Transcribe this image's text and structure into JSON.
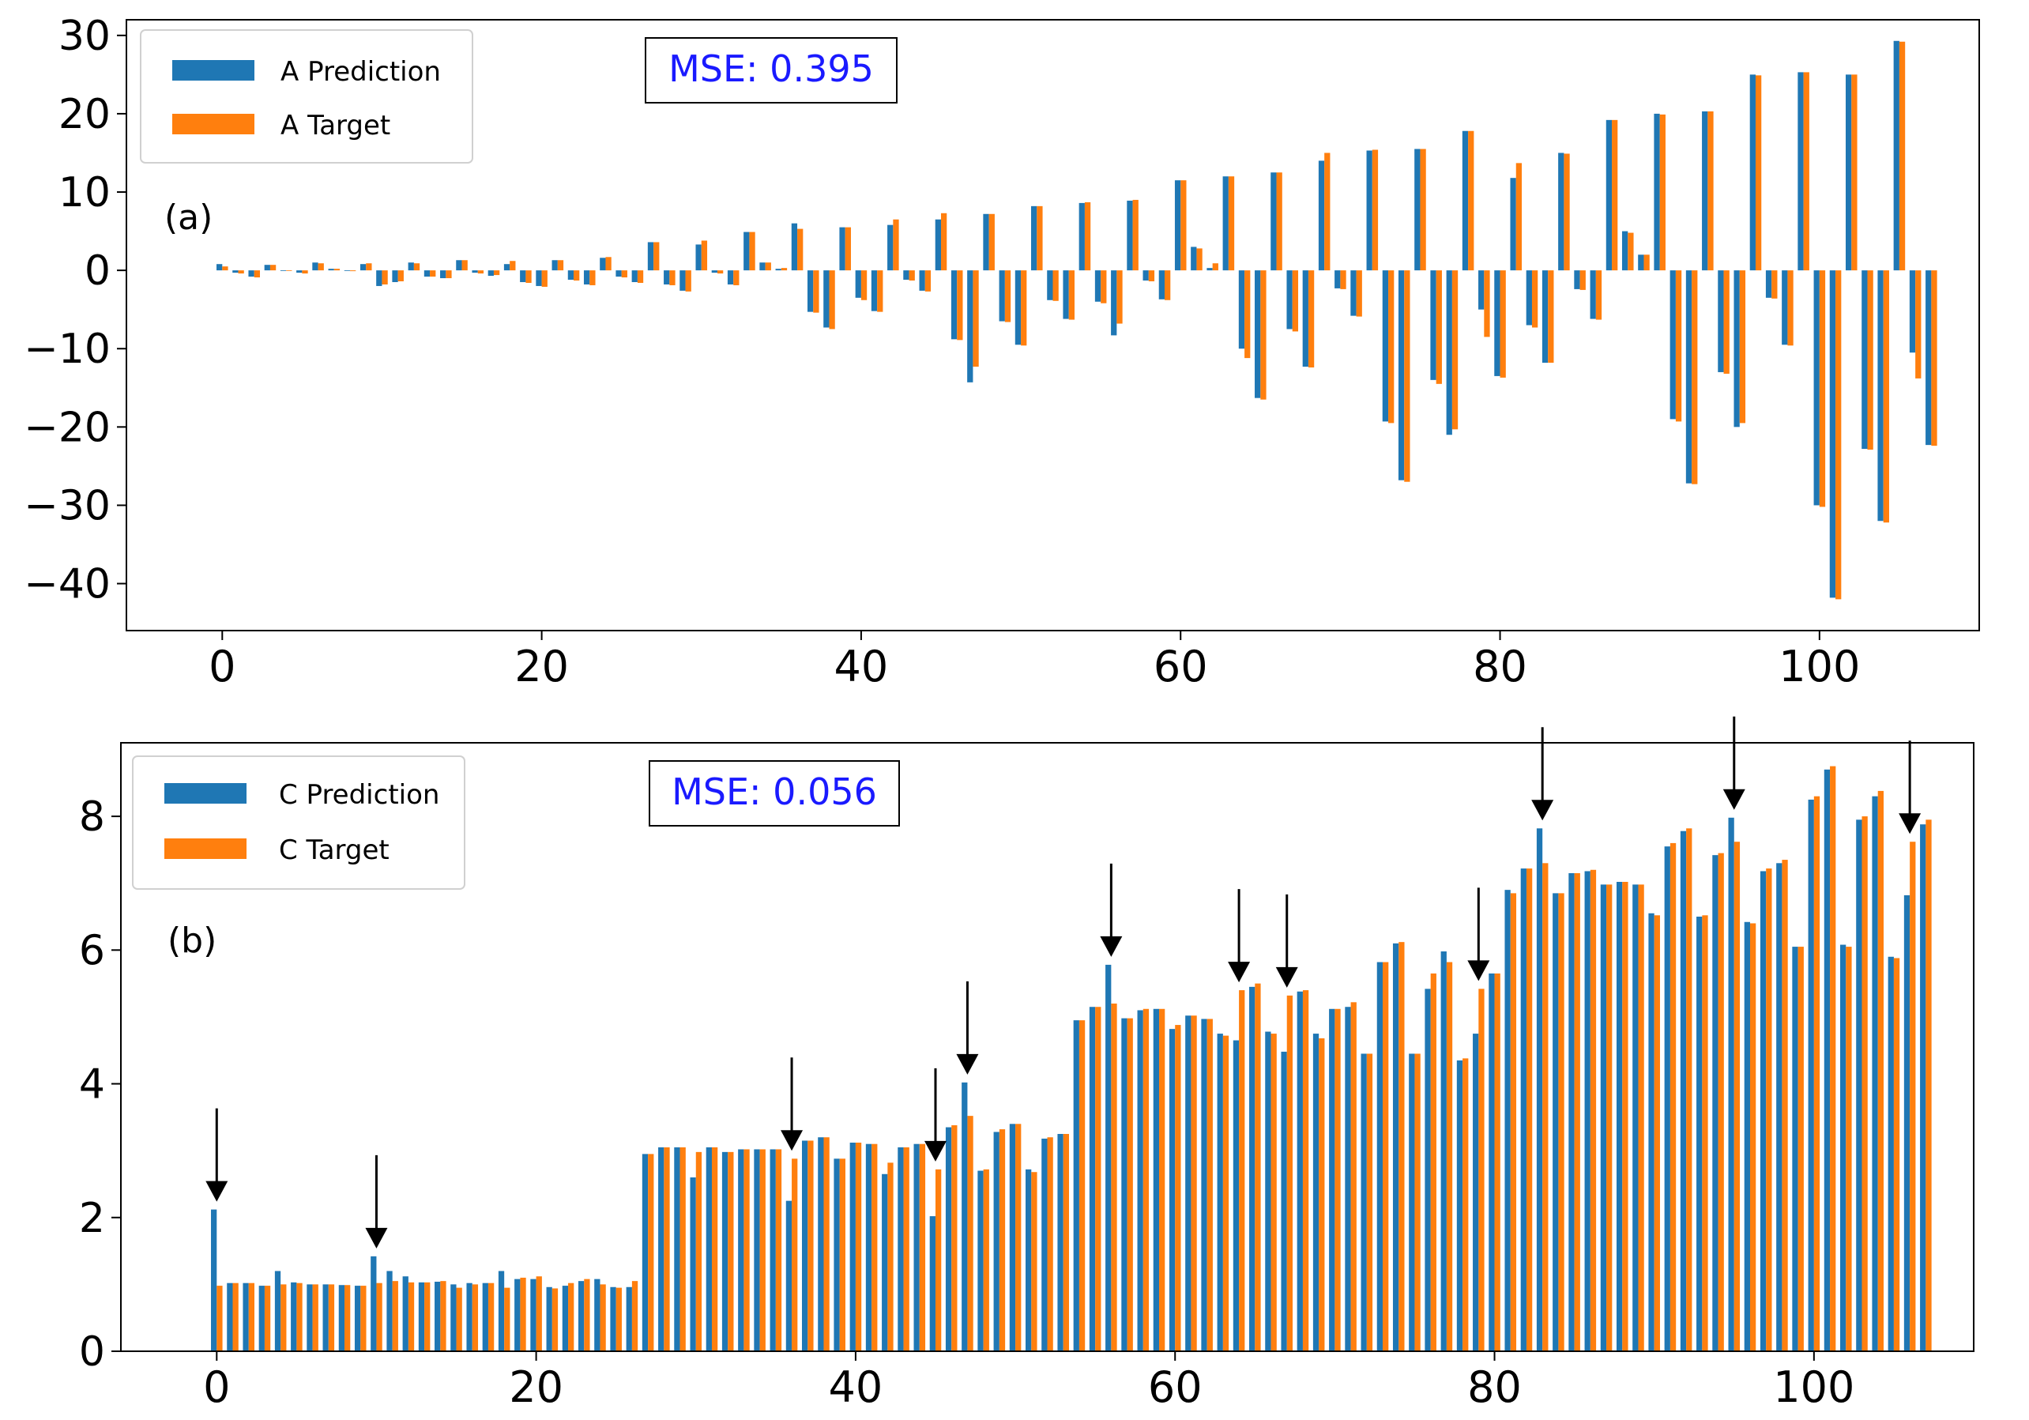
{
  "chart_data": [
    {
      "type": "bar",
      "panel_label": "(a)",
      "annotation": "MSE: 0.395",
      "ylim": [
        -46,
        32
      ],
      "xlim": [
        -6,
        110
      ],
      "xticks": [
        0,
        20,
        40,
        60,
        80,
        100
      ],
      "yticks": [
        -40,
        -30,
        -20,
        -10,
        0,
        10,
        20,
        30
      ],
      "ytick_labels": [
        "−40",
        "−30",
        "−20",
        "−10",
        "0",
        "10",
        "20",
        "30"
      ],
      "legend_position": "top-left",
      "series": [
        {
          "name": "A Prediction",
          "color": "#1f77b4",
          "values": [
            0.8,
            -0.3,
            -0.8,
            0.7,
            0,
            -0.3,
            1,
            0.2,
            0,
            0.8,
            -2,
            -1.5,
            1,
            -0.8,
            -1,
            1.3,
            -0.3,
            -0.7,
            0.8,
            -1.5,
            -2,
            1.3,
            -1.2,
            -1.8,
            1.6,
            -0.8,
            -1.5,
            3.6,
            -1.8,
            -2.6,
            3.3,
            -0.3,
            -1.8,
            4.9,
            1,
            0.2,
            6,
            -5.3,
            -7.3,
            5.5,
            -3.5,
            -5.2,
            5.8,
            -1.2,
            -2.6,
            6.5,
            -8.8,
            -14.3,
            7.2,
            -6.5,
            -9.5,
            8.2,
            -3.8,
            -6.2,
            8.6,
            -4,
            -8.3,
            8.9,
            -1.3,
            -3.7,
            11.5,
            3,
            0.3,
            12,
            -10,
            -16.3,
            12.5,
            -7.5,
            -12.3,
            14,
            -2.3,
            -5.8,
            15.3,
            -19.3,
            -26.8,
            15.5,
            -14,
            -21,
            17.8,
            -5,
            -13.5,
            11.8,
            -7,
            -11.8,
            15,
            -2.4,
            -6.2,
            19.2,
            5,
            2,
            20,
            -19,
            -27.2,
            20.3,
            -13,
            -20,
            25,
            -3.5,
            -9.5,
            25.3,
            -30,
            -41.8,
            25,
            -22.8,
            -32,
            29.3,
            -10.5,
            -22.3
          ]
        },
        {
          "name": "A Target",
          "color": "#ff7f0e",
          "values": [
            0.5,
            -0.4,
            -0.9,
            0.7,
            0,
            -0.4,
            0.9,
            0.2,
            -0.1,
            0.9,
            -1.8,
            -1.4,
            0.9,
            -0.8,
            -1,
            1.3,
            -0.4,
            -0.6,
            1.2,
            -1.6,
            -2.1,
            1.3,
            -1.3,
            -1.9,
            1.7,
            -0.9,
            -1.6,
            3.6,
            -1.9,
            -2.7,
            3.8,
            -0.4,
            -1.9,
            4.9,
            1,
            0.3,
            5.3,
            -5.4,
            -7.5,
            5.5,
            -3.8,
            -5.3,
            6.5,
            -1.3,
            -2.7,
            7.3,
            -8.9,
            -12.3,
            7.2,
            -6.6,
            -9.6,
            8.2,
            -3.9,
            -6.3,
            8.7,
            -4.2,
            -6.8,
            9,
            -1.4,
            -3.8,
            11.5,
            2.8,
            0.9,
            12,
            -11.2,
            -16.5,
            12.5,
            -7.8,
            -12.4,
            15,
            -2.4,
            -5.9,
            15.4,
            -19.5,
            -27,
            15.5,
            -14.5,
            -20.3,
            17.8,
            -8.5,
            -13.7,
            13.7,
            -7.3,
            -11.8,
            14.9,
            -2.5,
            -6.3,
            19.2,
            4.8,
            2,
            19.9,
            -19.3,
            -27.3,
            20.3,
            -13.2,
            -19.5,
            24.9,
            -3.6,
            -9.6,
            25.3,
            -30.2,
            -42,
            25,
            -22.9,
            -32.2,
            29.2,
            -13.8,
            -22.4
          ]
        }
      ]
    },
    {
      "type": "bar",
      "panel_label": "(b)",
      "annotation": "MSE: 0.056",
      "ylim": [
        0,
        9.1
      ],
      "xlim": [
        -6,
        110
      ],
      "xticks": [
        0,
        20,
        40,
        60,
        80,
        100
      ],
      "yticks": [
        0,
        2,
        4,
        6,
        8
      ],
      "ytick_labels": [
        "0",
        "2",
        "4",
        "6",
        "8"
      ],
      "legend_position": "top-left",
      "arrows_at_index": [
        0,
        10,
        36,
        45,
        47,
        56,
        64,
        67,
        79,
        83,
        95,
        106
      ],
      "series": [
        {
          "name": "C Prediction",
          "color": "#1f77b4",
          "values": [
            2.12,
            1.02,
            1.02,
            0.98,
            1.2,
            1.03,
            1,
            1,
            0.99,
            0.98,
            1.42,
            1.2,
            1.12,
            1.03,
            1.04,
            1,
            1.02,
            1.02,
            1.2,
            1.08,
            1.08,
            0.96,
            0.98,
            1.05,
            1.08,
            0.96,
            0.96,
            2.95,
            3.05,
            3.05,
            2.6,
            3.05,
            2.98,
            3.02,
            3.02,
            3.02,
            2.25,
            3.15,
            3.2,
            2.88,
            3.12,
            3.1,
            2.65,
            3.05,
            3.1,
            2.02,
            3.35,
            4.02,
            2.7,
            3.28,
            3.4,
            2.72,
            3.18,
            3.25,
            4.95,
            5.15,
            5.78,
            4.98,
            5.1,
            5.12,
            4.82,
            5.02,
            4.97,
            4.75,
            4.65,
            5.45,
            4.78,
            4.48,
            5.38,
            4.75,
            5.12,
            5.15,
            4.45,
            5.82,
            6.1,
            4.45,
            5.42,
            5.98,
            4.35,
            4.75,
            5.65,
            6.9,
            7.22,
            7.82,
            6.85,
            7.15,
            7.18,
            6.98,
            7.02,
            6.98,
            6.55,
            7.55,
            7.78,
            6.5,
            7.42,
            7.98,
            6.42,
            7.18,
            7.3,
            6.05,
            8.25,
            8.7,
            6.08,
            7.95,
            8.3,
            5.9,
            6.82,
            7.88
          ]
        },
        {
          "name": "C Target",
          "color": "#ff7f0e",
          "values": [
            0.98,
            1.02,
            1.02,
            0.98,
            1,
            1.02,
            1,
            1,
            0.99,
            0.98,
            1.02,
            1.05,
            1.03,
            1.03,
            1.05,
            0.95,
            1,
            1.02,
            0.95,
            1.1,
            1.12,
            0.94,
            1.02,
            1.08,
            1,
            0.95,
            1.05,
            2.95,
            3.05,
            3.05,
            2.98,
            3.05,
            2.98,
            3.02,
            3.02,
            3.02,
            2.88,
            3.15,
            3.2,
            2.88,
            3.12,
            3.1,
            2.82,
            3.05,
            3.1,
            2.72,
            3.38,
            3.52,
            2.72,
            3.32,
            3.4,
            2.68,
            3.2,
            3.25,
            4.95,
            5.15,
            5.2,
            4.98,
            5.12,
            5.12,
            4.88,
            5.02,
            4.97,
            4.72,
            5.4,
            5.5,
            4.75,
            5.32,
            5.4,
            4.68,
            5.12,
            5.22,
            4.45,
            5.82,
            6.12,
            4.45,
            5.65,
            5.82,
            4.38,
            5.42,
            5.65,
            6.85,
            7.22,
            7.3,
            6.85,
            7.15,
            7.2,
            6.98,
            7.02,
            6.98,
            6.52,
            7.6,
            7.82,
            6.52,
            7.45,
            7.62,
            6.4,
            7.22,
            7.35,
            6.05,
            8.3,
            8.75,
            6.05,
            8,
            8.38,
            5.88,
            7.62,
            7.95
          ]
        }
      ]
    }
  ]
}
